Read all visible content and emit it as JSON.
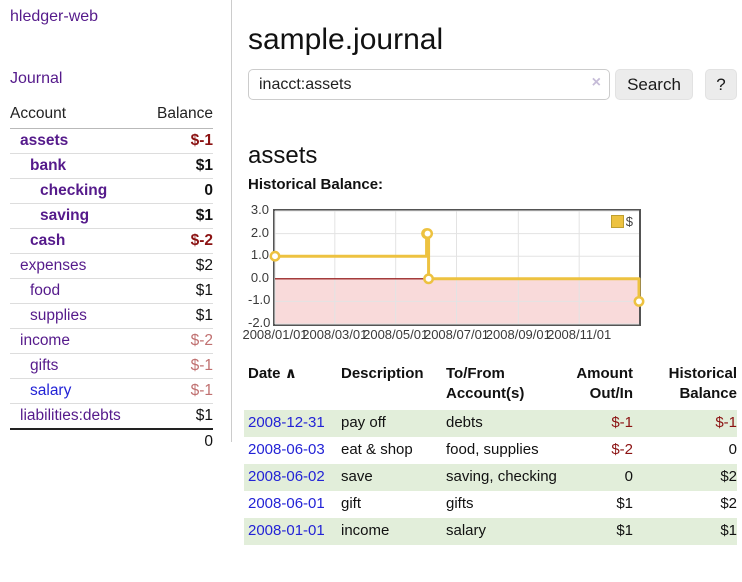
{
  "app": {
    "brand": "hledger-web",
    "nav_journal": "Journal"
  },
  "sidebar": {
    "table_headers": {
      "account": "Account",
      "balance": "Balance"
    },
    "accounts": [
      {
        "name": "assets",
        "indent": 1,
        "balance": "$-1",
        "bold": true,
        "neg": "strong",
        "link": "purple"
      },
      {
        "name": "bank",
        "indent": 2,
        "balance": "$1",
        "bold": true,
        "neg": "none",
        "link": "purple"
      },
      {
        "name": "checking",
        "indent": 3,
        "balance": "0",
        "bold": true,
        "neg": "none",
        "link": "purple"
      },
      {
        "name": "saving",
        "indent": 3,
        "balance": "$1",
        "bold": true,
        "neg": "none",
        "link": "purple"
      },
      {
        "name": "cash",
        "indent": 2,
        "balance": "$-2",
        "bold": true,
        "neg": "strong",
        "link": "purple"
      },
      {
        "name": "expenses",
        "indent": 1,
        "balance": "$2",
        "bold": false,
        "neg": "none",
        "link": "purple"
      },
      {
        "name": "food",
        "indent": 2,
        "balance": "$1",
        "bold": false,
        "neg": "none",
        "link": "purple"
      },
      {
        "name": "supplies",
        "indent": 2,
        "balance": "$1",
        "bold": false,
        "neg": "none",
        "link": "purple"
      },
      {
        "name": "income",
        "indent": 1,
        "balance": "$-2",
        "bold": false,
        "neg": "soft",
        "link": "purple"
      },
      {
        "name": "gifts",
        "indent": 2,
        "balance": "$-1",
        "bold": false,
        "neg": "soft",
        "link": "purple"
      },
      {
        "name": "salary",
        "indent": 2,
        "balance": "$-1",
        "bold": false,
        "neg": "soft",
        "link": "blue"
      },
      {
        "name": "liabilities:debts",
        "indent": 1,
        "balance": "$1",
        "bold": false,
        "neg": "none",
        "link": "purple"
      }
    ],
    "total": "0"
  },
  "header": {
    "title": "sample.journal"
  },
  "search": {
    "value": "inacct:assets",
    "clear_icon": "×",
    "button": "Search",
    "help_button": "?"
  },
  "account_page": {
    "heading": "assets",
    "chart_label": "Historical Balance:"
  },
  "chart_data": {
    "type": "line",
    "step": true,
    "title": "Historical Balance:",
    "series": [
      {
        "name": "$",
        "color": "#edc240",
        "points": [
          {
            "date": "2008-01-01",
            "value": 1
          },
          {
            "date": "2008-06-01",
            "value": 2
          },
          {
            "date": "2008-06-02",
            "value": 2
          },
          {
            "date": "2008-06-03",
            "value": 0
          },
          {
            "date": "2008-12-31",
            "value": -1
          }
        ]
      }
    ],
    "x_ticks": [
      "2008/01/01",
      "2008/03/01",
      "2008/05/01",
      "2008/07/01",
      "2008/09/01",
      "2008/11/01"
    ],
    "y_ticks": [
      "3.0",
      "2.0",
      "1.0",
      "0.0",
      "-1.0",
      "-2.0"
    ],
    "ylim": [
      -2,
      3
    ],
    "x_range": [
      "2008-01-01",
      "2008-12-31"
    ],
    "grid": true,
    "grid_color": "#e3e3e3",
    "border_color": "#545454",
    "negative_region_color": "#f9dada",
    "zero_line_color": "#8b0000",
    "marker_fill": "#ffffff",
    "legend": {
      "label": "$",
      "position": "top-right",
      "swatch_color": "#edc240"
    }
  },
  "register": {
    "headers": {
      "date": "Date",
      "sort_icon": "∧",
      "description": "Description",
      "account": "To/From Account(s)",
      "amount": "Amount Out/In",
      "balance": "Historical Balance"
    },
    "rows": [
      {
        "date": "2008-12-31",
        "description": "pay off",
        "accounts": "debts",
        "amount": "$-1",
        "balance": "$-1",
        "amount_neg": true,
        "balance_neg": true,
        "highlight": true
      },
      {
        "date": "2008-06-03",
        "description": "eat & shop",
        "accounts": "food, supplies",
        "amount": "$-2",
        "balance": "0",
        "amount_neg": true,
        "balance_neg": false,
        "highlight": false
      },
      {
        "date": "2008-06-02",
        "description": "save",
        "accounts": "saving, checking",
        "amount": "0",
        "balance": "$2",
        "amount_neg": false,
        "balance_neg": false,
        "highlight": true
      },
      {
        "date": "2008-06-01",
        "description": "gift",
        "accounts": "gifts",
        "amount": "$1",
        "balance": "$2",
        "amount_neg": false,
        "balance_neg": false,
        "highlight": false
      },
      {
        "date": "2008-01-01",
        "description": "income",
        "accounts": "salary",
        "amount": "$1",
        "balance": "$1",
        "amount_neg": false,
        "balance_neg": false,
        "highlight": true
      }
    ]
  },
  "colors": {
    "link_purple": "#551a8b",
    "link_blue": "#2323d6",
    "negative_strong": "#8b1212",
    "negative_soft": "#c07070",
    "row_highlight_green": "#e2eeda",
    "series_gold": "#edc240",
    "chart_negative_pink": "#f9dada"
  }
}
